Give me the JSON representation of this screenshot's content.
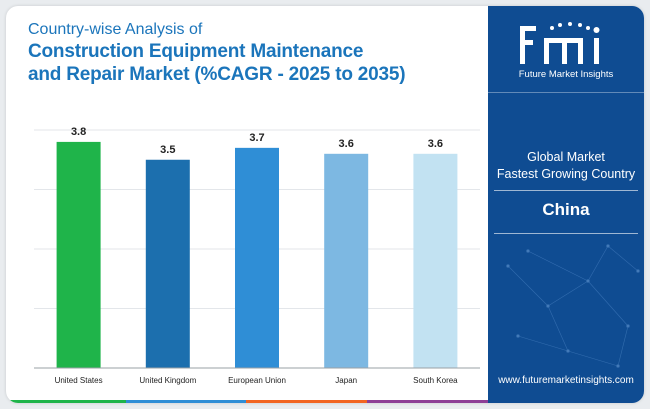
{
  "title": {
    "kicker": "Country-wise Analysis of",
    "line1": "Construction Equipment Maintenance",
    "line2": "and Repair Market (%CAGR - 2025 to 2035)"
  },
  "chart_data": {
    "type": "bar",
    "categories": [
      "United States",
      "United Kingdom",
      "European Union",
      "Japan",
      "South Korea"
    ],
    "values": [
      3.8,
      3.5,
      3.7,
      3.6,
      3.6
    ],
    "data_labels": [
      "3.8",
      "3.5",
      "3.7",
      "3.6",
      "3.6"
    ],
    "colors": [
      "#1fb44a",
      "#1c6fae",
      "#2f8ed6",
      "#7db8e2",
      "#c2e2f2"
    ],
    "ylim": [
      0,
      4
    ],
    "grid": true,
    "legend": "none"
  },
  "side_panel": {
    "logo_text": "fmi",
    "logo_subtitle": "Future Market Insights",
    "line1": "Global Market",
    "line2": "Fastest Growing Country",
    "country": "China",
    "website": "www.futuremarketinsights.com",
    "background": "#0f4c92"
  },
  "accent_colors": [
    "#1fb44a",
    "#2f8ed6",
    "#f26522",
    "#8e3f96"
  ]
}
